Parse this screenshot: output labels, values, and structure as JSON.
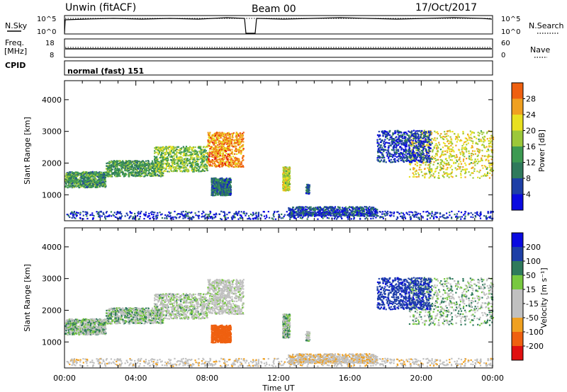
{
  "header": {
    "station": "Unwin (fitACF)",
    "beam": "Beam 00",
    "date": "17/Oct/2017"
  },
  "panels": {
    "nsky": {
      "label": "N.Sky",
      "ticks": [
        "10^5",
        "10^0"
      ],
      "right_ticks": [
        "10^5",
        "10^0"
      ],
      "right_label": "N.Search"
    },
    "freq": {
      "label_line1": "Freq.",
      "label_line2": "[MHz]",
      "ticks": [
        "18",
        "8"
      ],
      "right_ticks": [
        "60",
        "0"
      ],
      "right_label": "Nave"
    },
    "cpid": {
      "label": "CPID",
      "mode": "normal (fast) 151"
    }
  },
  "colors": {
    "power": [
      "#0a0ae0",
      "#1e3fa6",
      "#2f7a5c",
      "#3d9a52",
      "#9cc83a",
      "#e8e020",
      "#f0a020",
      "#ef6010",
      "#e01010"
    ],
    "velocity": [
      "#e01010",
      "#ef6010",
      "#f0a020",
      "#c0c0c0",
      "#c0c0c0",
      "#78c840",
      "#2f7a5c",
      "#1e3fa6",
      "#0a0ae0"
    ]
  },
  "chart_data": {
    "type": "heatmap",
    "xlabel": "Time UT",
    "x_ticks": [
      "00:00",
      "04:00",
      "08:00",
      "12:00",
      "16:00",
      "20:00",
      "00:00"
    ],
    "x_range_hours": [
      0,
      24
    ],
    "ylabel": "Slant Range [km]",
    "y_ticks": [
      1000,
      2000,
      3000,
      4000
    ],
    "y_range": [
      180,
      4600
    ],
    "power_panel": {
      "colorbar_label": "Power [dB]",
      "colorbar_ticks": [
        "28",
        "24",
        "20",
        "16",
        "12",
        "8",
        "4"
      ],
      "range": [
        0,
        32
      ]
    },
    "velocity_panel": {
      "colorbar_label": "Velocity [m s⁻¹]",
      "colorbar_ticks": [
        "200",
        "100",
        "50",
        "15",
        "-15",
        "-50",
        "-100",
        "-200"
      ]
    },
    "echo_regions": [
      {
        "t": [
          0.0,
          2.3
        ],
        "r": [
          1200,
          1700
        ],
        "power": 11,
        "vel": 0
      },
      {
        "t": [
          2.3,
          5.5
        ],
        "r": [
          1550,
          2050
        ],
        "power": 12,
        "vel": 0
      },
      {
        "t": [
          5.0,
          8.0
        ],
        "r": [
          1700,
          2500
        ],
        "power": 15,
        "vel": -10
      },
      {
        "t": [
          8.0,
          10.0
        ],
        "r": [
          1850,
          2950
        ],
        "power": 24,
        "vel": -20
      },
      {
        "t": [
          8.2,
          9.3
        ],
        "r": [
          950,
          1500
        ],
        "power": 8,
        "vel": -150
      },
      {
        "t": [
          12.2,
          12.6
        ],
        "r": [
          1100,
          1850
        ],
        "power": 18,
        "vel": 0
      },
      {
        "t": [
          13.5,
          13.7
        ],
        "r": [
          1000,
          1300
        ],
        "power": 8,
        "vel": 0
      },
      {
        "t": [
          12.5,
          17.5
        ],
        "r": [
          300,
          600
        ],
        "power": 6,
        "vel": -40
      },
      {
        "t": [
          19.3,
          24.0
        ],
        "r": [
          1500,
          3000
        ],
        "power": 19,
        "vel": 0
      },
      {
        "t": [
          17.5,
          20.5
        ],
        "r": [
          2000,
          3000
        ],
        "power": 5,
        "vel": 80
      },
      {
        "t": [
          0.0,
          24.0
        ],
        "r": [
          200,
          450
        ],
        "power": 4,
        "vel": -30
      }
    ]
  }
}
